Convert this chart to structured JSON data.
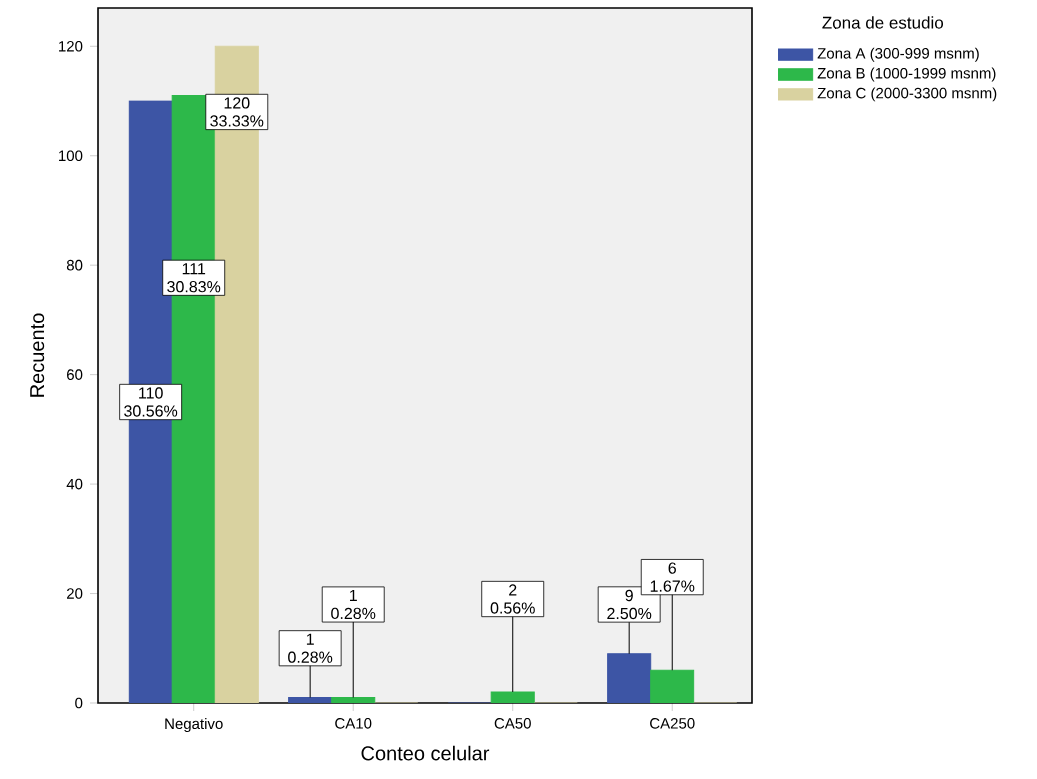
{
  "chart_data": {
    "type": "bar",
    "xlabel": "Conteo celular",
    "ylabel": "Recuento",
    "legend_title": "Zona de estudio",
    "categories": [
      "Negativo",
      "CA10",
      "CA50",
      "CA250"
    ],
    "series": [
      {
        "name": "Zona A (300-999 msnm)",
        "color": "#3d55a5",
        "values": [
          110,
          1,
          0,
          9
        ],
        "value_labels": [
          "110 30.56%",
          "1 0.28%",
          null,
          "9 2.50%"
        ]
      },
      {
        "name": "Zona B (1000-1999 msnm)",
        "color": "#2db84a",
        "values": [
          111,
          1,
          2,
          6
        ],
        "value_labels": [
          "111 30.83%",
          "1 0.28%",
          "2 0.56%",
          "6 1.67%"
        ]
      },
      {
        "name": "Zona C (2000-3300 msnm)",
        "color": "#d9d2a0",
        "values": [
          120,
          0,
          0,
          0
        ],
        "value_labels": [
          "120 33.33%",
          null,
          null,
          null
        ]
      }
    ],
    "ylim": [
      0,
      127
    ],
    "yticks": [
      0,
      20,
      40,
      60,
      80,
      100,
      120
    ],
    "grid": false,
    "legend": "top right"
  }
}
